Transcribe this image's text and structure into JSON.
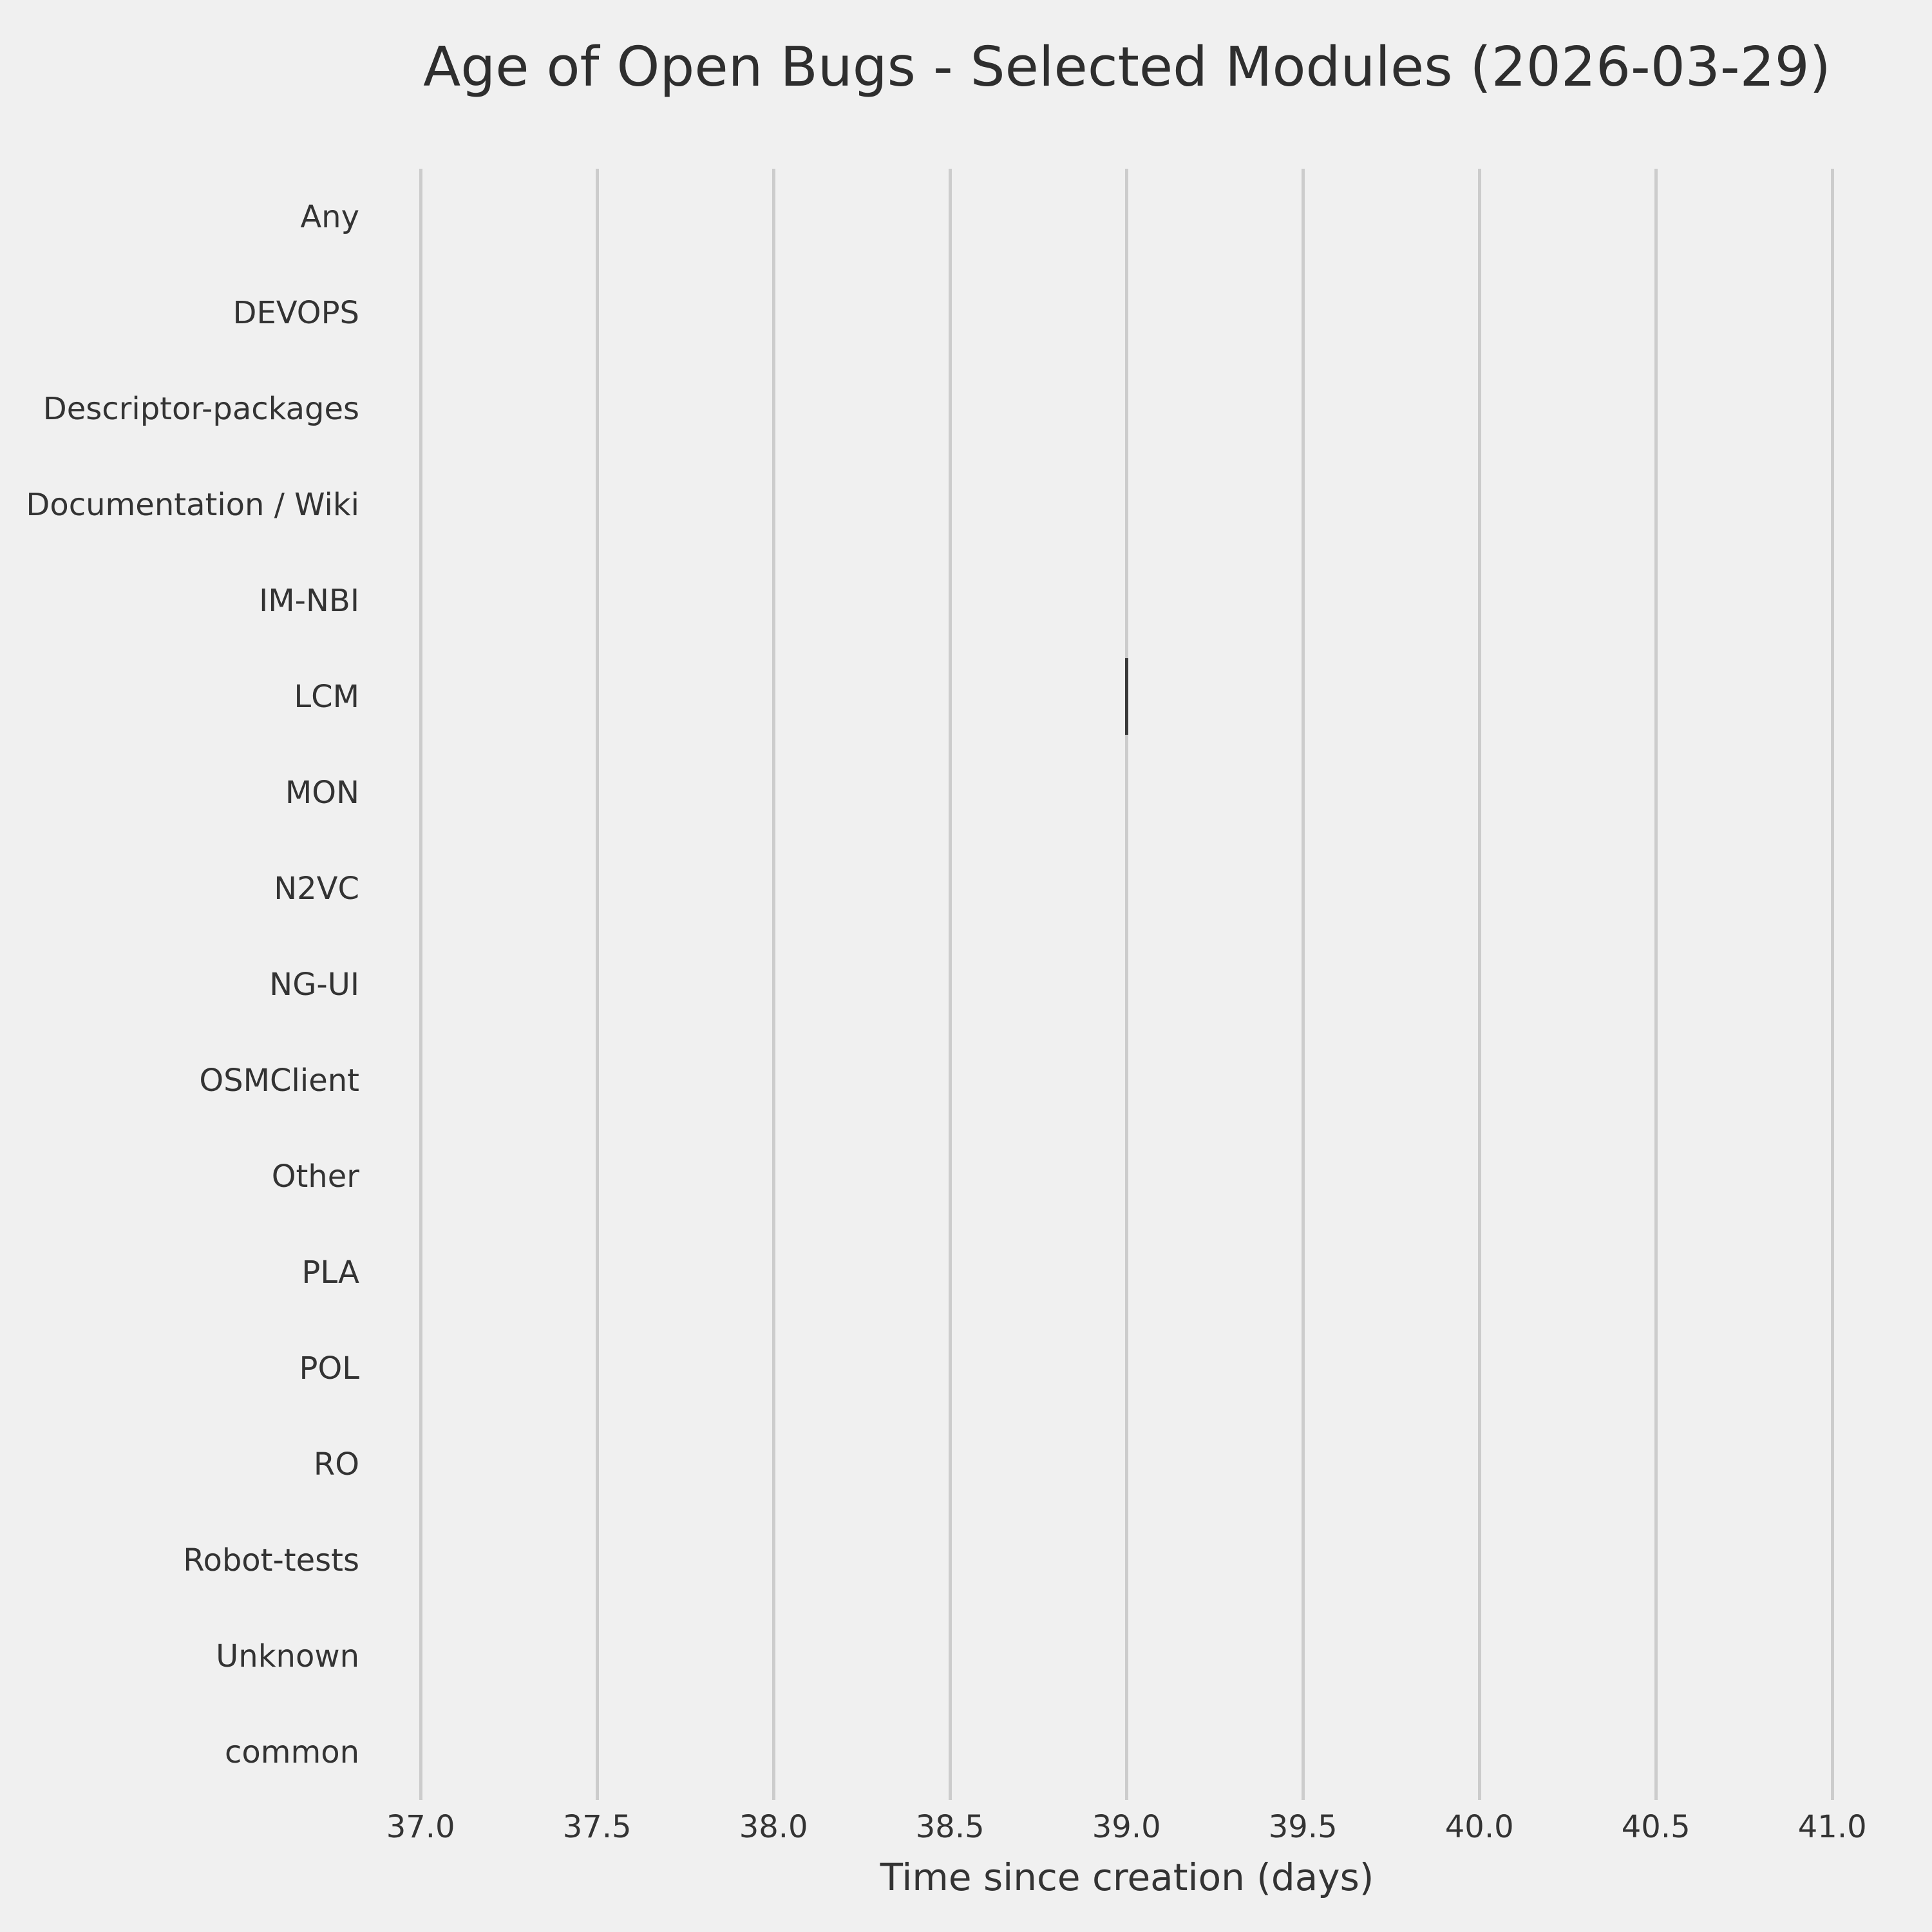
{
  "figure": {
    "background": "#f0f0f0"
  },
  "chart_data": {
    "type": "boxplot",
    "orientation": "horizontal",
    "title": "Age of Open Bugs - Selected Modules (2026-03-29)",
    "xlabel": "Time since creation (days)",
    "ylabel": "",
    "categories": [
      "Any",
      "DEVOPS",
      "Descriptor-packages",
      "Documentation / Wiki",
      "IM-NBI",
      "LCM",
      "MON",
      "N2VC",
      "NG-UI",
      "OSMClient",
      "Other",
      "PLA",
      "POL",
      "RO",
      "Robot-tests",
      "Unknown",
      "common"
    ],
    "values": [
      [],
      [],
      [],
      [],
      [],
      [
        39.0
      ],
      [],
      [],
      [],
      [],
      [],
      [],
      [],
      [],
      [],
      [],
      []
    ],
    "xticks": [
      "37.0",
      "37.5",
      "38.0",
      "38.5",
      "39.0",
      "39.5",
      "40.0",
      "40.5",
      "41.0"
    ],
    "xlim": [
      36.903,
      41.1
    ],
    "grid": "vertical-only",
    "legend": "none",
    "colors": {
      "background": "#f0f0f0",
      "gridline": "#cccccc",
      "tick_text": "#333333",
      "title_text": "#2e2e2e",
      "mark": "#3a3a3a"
    }
  }
}
